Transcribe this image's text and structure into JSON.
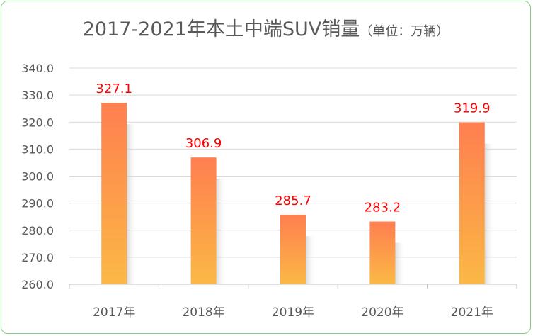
{
  "chart_data": {
    "type": "bar",
    "title": "2017-2021年本土中端SUV销量",
    "title_unit": "（单位：万辆）",
    "xlabel": "",
    "ylabel": "",
    "categories": [
      "2017年",
      "2018年",
      "2019年",
      "2020年",
      "2021年"
    ],
    "values": [
      327.1,
      306.9,
      285.7,
      283.2,
      319.9
    ],
    "data_labels": [
      "327.1",
      "306.9",
      "285.7",
      "283.2",
      "319.9"
    ],
    "ylim": [
      260,
      340
    ],
    "yticks": [
      "260.0",
      "270.0",
      "280.0",
      "290.0",
      "300.0",
      "310.0",
      "320.0",
      "330.0",
      "340.0"
    ],
    "grid": true,
    "legend": "none",
    "colors": {
      "bar_top": "#ff7f50",
      "bar_bottom": "#fbb845",
      "data_label": "#ff0000",
      "grid": "#d9d9d9",
      "tick_text": "#595959",
      "border": "#7fcf7f"
    }
  }
}
